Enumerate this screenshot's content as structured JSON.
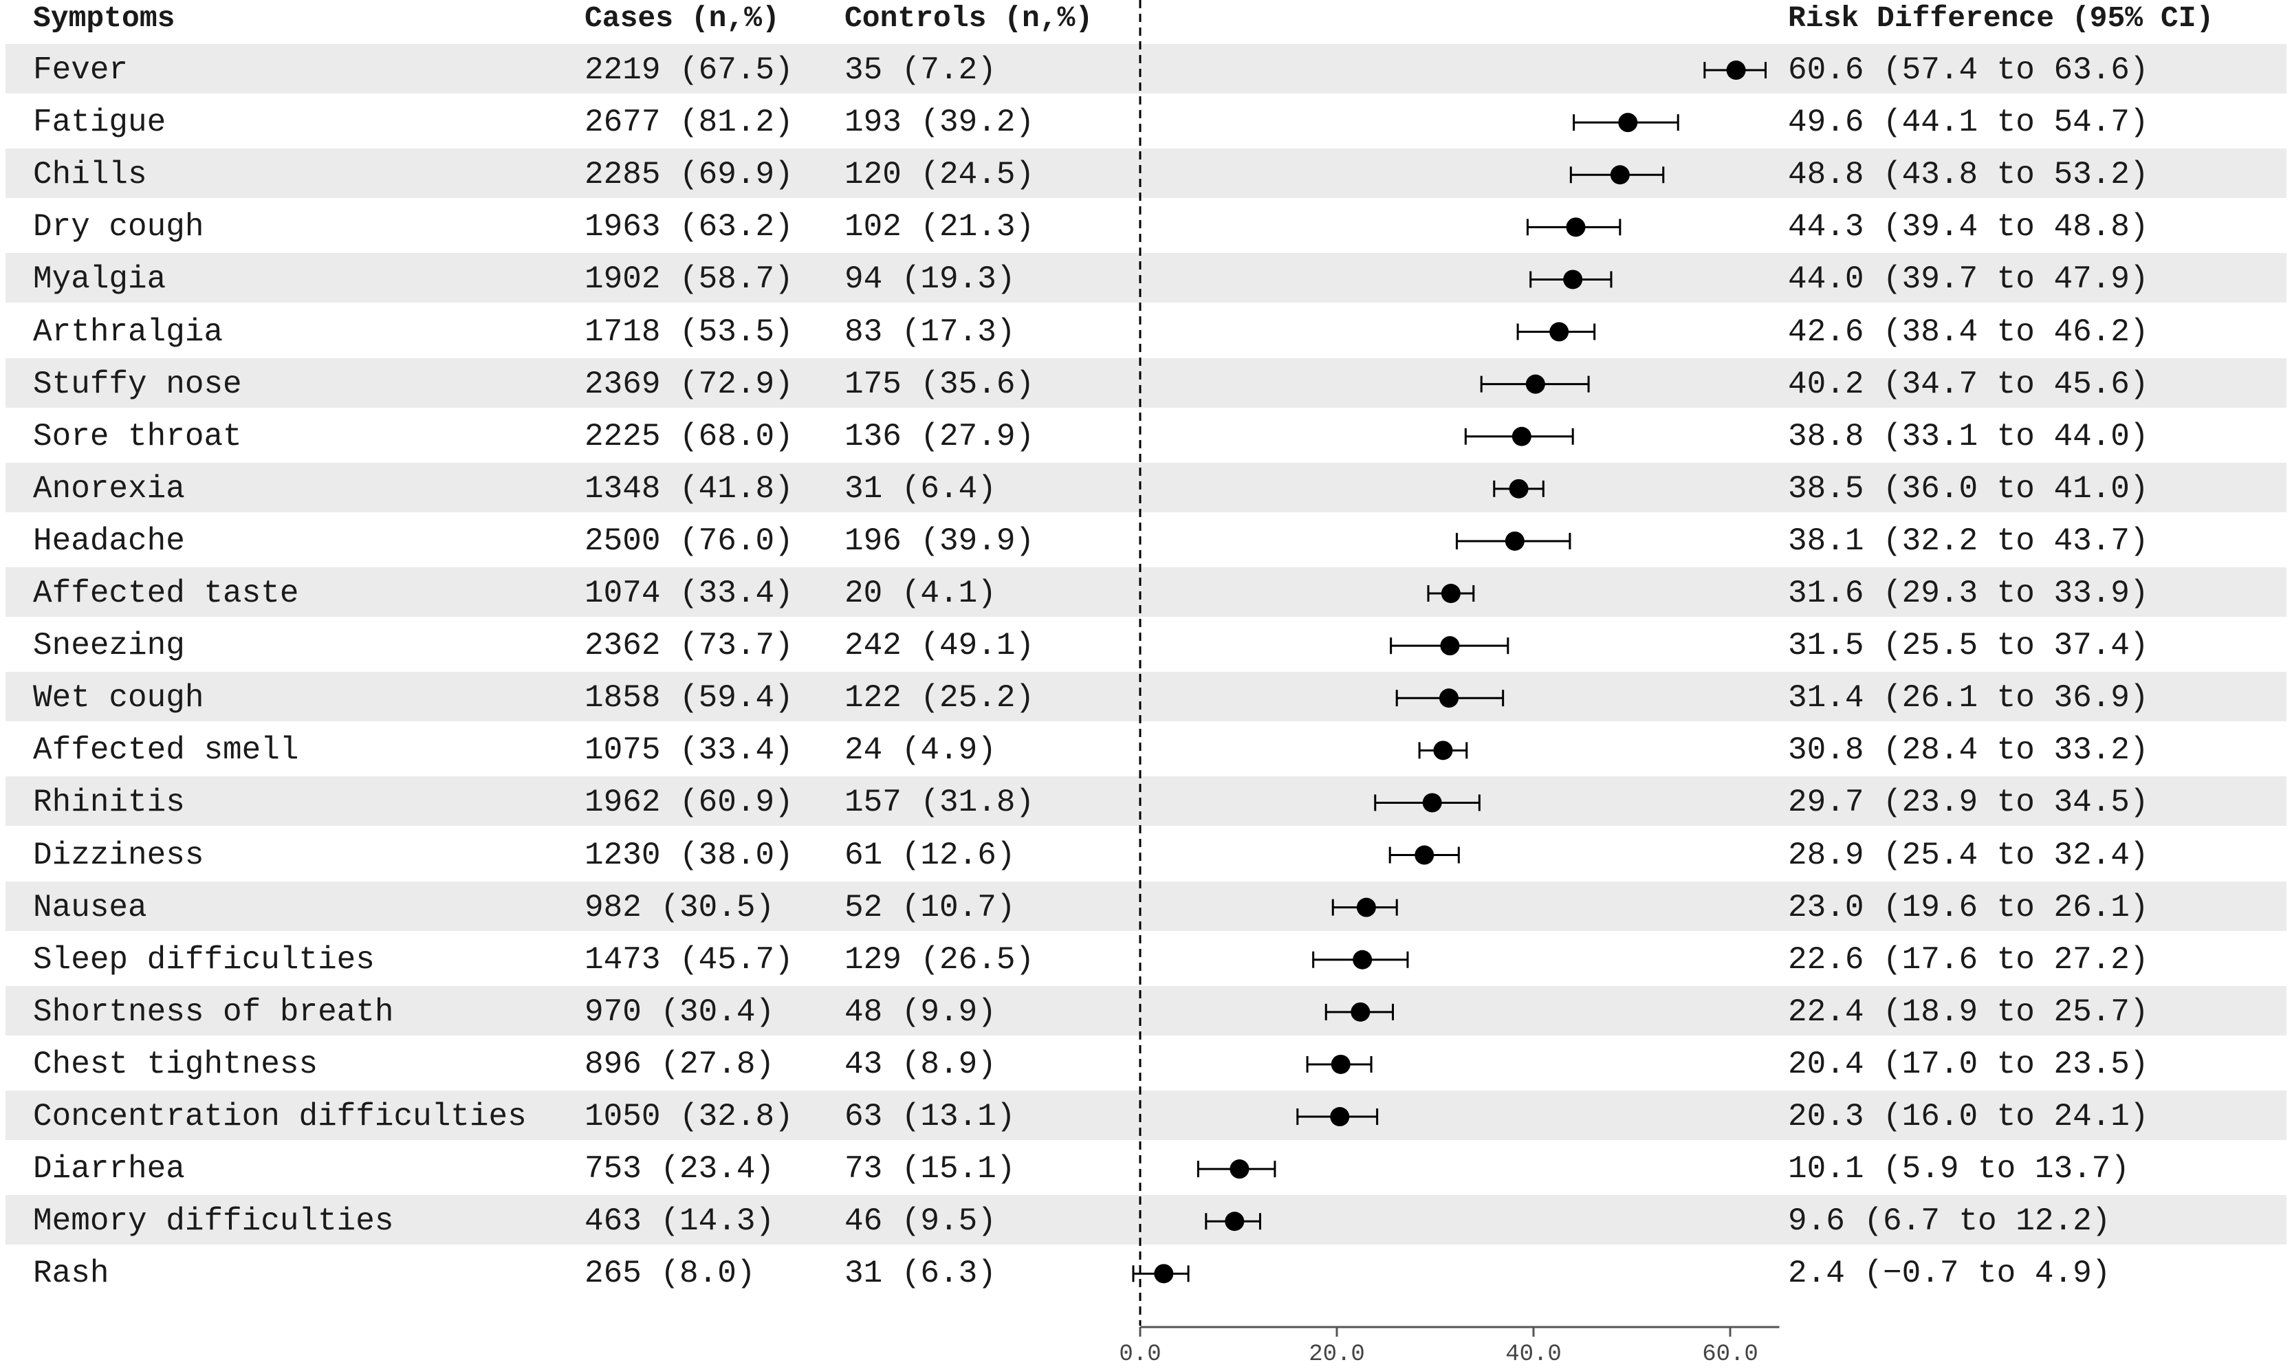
{
  "chart_data": {
    "type": "forest",
    "columns": {
      "symptoms": "Symptoms",
      "cases": "Cases (n,%)",
      "controls": "Controls (n,%)",
      "risk_difference": "Risk Difference (95% CI)"
    },
    "x_axis": {
      "min": 0,
      "max": 65,
      "ticks": [
        0,
        20,
        40,
        60
      ],
      "tick_labels": [
        "0.0",
        "20.0",
        "40.0",
        "60.0"
      ],
      "reference_line": 0
    },
    "rows": [
      {
        "symptom": "Fever",
        "cases": "2219 (67.5)",
        "controls": "35 (7.2)",
        "rd": 60.6,
        "lo": 57.4,
        "hi": 63.6,
        "label": "60.6 (57.4 to 63.6)"
      },
      {
        "symptom": "Fatigue",
        "cases": "2677 (81.2)",
        "controls": "193 (39.2)",
        "rd": 49.6,
        "lo": 44.1,
        "hi": 54.7,
        "label": "49.6 (44.1 to 54.7)"
      },
      {
        "symptom": "Chills",
        "cases": "2285 (69.9)",
        "controls": "120 (24.5)",
        "rd": 48.8,
        "lo": 43.8,
        "hi": 53.2,
        "label": "48.8 (43.8 to 53.2)"
      },
      {
        "symptom": "Dry cough",
        "cases": "1963 (63.2)",
        "controls": "102 (21.3)",
        "rd": 44.3,
        "lo": 39.4,
        "hi": 48.8,
        "label": "44.3 (39.4 to 48.8)"
      },
      {
        "symptom": "Myalgia",
        "cases": "1902 (58.7)",
        "controls": "94 (19.3)",
        "rd": 44.0,
        "lo": 39.7,
        "hi": 47.9,
        "label": "44.0 (39.7 to 47.9)"
      },
      {
        "symptom": "Arthralgia",
        "cases": "1718 (53.5)",
        "controls": "83 (17.3)",
        "rd": 42.6,
        "lo": 38.4,
        "hi": 46.2,
        "label": "42.6 (38.4 to 46.2)"
      },
      {
        "symptom": "Stuffy nose",
        "cases": "2369 (72.9)",
        "controls": "175 (35.6)",
        "rd": 40.2,
        "lo": 34.7,
        "hi": 45.6,
        "label": "40.2 (34.7 to 45.6)"
      },
      {
        "symptom": "Sore throat",
        "cases": "2225 (68.0)",
        "controls": "136 (27.9)",
        "rd": 38.8,
        "lo": 33.1,
        "hi": 44.0,
        "label": "38.8 (33.1 to 44.0)"
      },
      {
        "symptom": "Anorexia",
        "cases": "1348 (41.8)",
        "controls": "31 (6.4)",
        "rd": 38.5,
        "lo": 36.0,
        "hi": 41.0,
        "label": "38.5 (36.0 to 41.0)"
      },
      {
        "symptom": "Headache",
        "cases": "2500 (76.0)",
        "controls": "196 (39.9)",
        "rd": 38.1,
        "lo": 32.2,
        "hi": 43.7,
        "label": "38.1 (32.2 to 43.7)"
      },
      {
        "symptom": "Affected taste",
        "cases": "1074 (33.4)",
        "controls": "20 (4.1)",
        "rd": 31.6,
        "lo": 29.3,
        "hi": 33.9,
        "label": "31.6 (29.3 to 33.9)"
      },
      {
        "symptom": "Sneezing",
        "cases": "2362 (73.7)",
        "controls": "242 (49.1)",
        "rd": 31.5,
        "lo": 25.5,
        "hi": 37.4,
        "label": "31.5 (25.5 to 37.4)"
      },
      {
        "symptom": "Wet cough",
        "cases": "1858 (59.4)",
        "controls": "122 (25.2)",
        "rd": 31.4,
        "lo": 26.1,
        "hi": 36.9,
        "label": "31.4 (26.1 to 36.9)"
      },
      {
        "symptom": "Affected smell",
        "cases": "1075 (33.4)",
        "controls": "24 (4.9)",
        "rd": 30.8,
        "lo": 28.4,
        "hi": 33.2,
        "label": "30.8 (28.4 to 33.2)"
      },
      {
        "symptom": "Rhinitis",
        "cases": "1962 (60.9)",
        "controls": "157 (31.8)",
        "rd": 29.7,
        "lo": 23.9,
        "hi": 34.5,
        "label": "29.7 (23.9 to 34.5)"
      },
      {
        "symptom": "Dizziness",
        "cases": "1230 (38.0)",
        "controls": "61 (12.6)",
        "rd": 28.9,
        "lo": 25.4,
        "hi": 32.4,
        "label": "28.9 (25.4 to 32.4)"
      },
      {
        "symptom": "Nausea",
        "cases": "982 (30.5)",
        "controls": "52 (10.7)",
        "rd": 23.0,
        "lo": 19.6,
        "hi": 26.1,
        "label": "23.0 (19.6 to 26.1)"
      },
      {
        "symptom": "Sleep difficulties",
        "cases": "1473 (45.7)",
        "controls": "129 (26.5)",
        "rd": 22.6,
        "lo": 17.6,
        "hi": 27.2,
        "label": "22.6 (17.6 to 27.2)"
      },
      {
        "symptom": "Shortness of breath",
        "cases": "970 (30.4)",
        "controls": "48 (9.9)",
        "rd": 22.4,
        "lo": 18.9,
        "hi": 25.7,
        "label": "22.4 (18.9 to 25.7)"
      },
      {
        "symptom": "Chest tightness",
        "cases": "896 (27.8)",
        "controls": "43 (8.9)",
        "rd": 20.4,
        "lo": 17.0,
        "hi": 23.5,
        "label": "20.4 (17.0 to 23.5)"
      },
      {
        "symptom": "Concentration difficulties",
        "cases": "1050 (32.8)",
        "controls": "63 (13.1)",
        "rd": 20.3,
        "lo": 16.0,
        "hi": 24.1,
        "label": "20.3 (16.0 to 24.1)"
      },
      {
        "symptom": "Diarrhea",
        "cases": "753 (23.4)",
        "controls": "73 (15.1)",
        "rd": 10.1,
        "lo": 5.9,
        "hi": 13.7,
        "label": "10.1 (5.9 to 13.7)"
      },
      {
        "symptom": "Memory difficulties",
        "cases": "463 (14.3)",
        "controls": "46 (9.5)",
        "rd": 9.6,
        "lo": 6.7,
        "hi": 12.2,
        "label": "9.6 (6.7 to 12.2)"
      },
      {
        "symptom": "Rash",
        "cases": "265 (8.0)",
        "controls": "31 (6.3)",
        "rd": 2.4,
        "lo": -0.7,
        "hi": 4.9,
        "label": "2.4 (−0.7 to 4.9)"
      }
    ],
    "colors": {
      "stripe": "#ebebeb",
      "marker": "#000000",
      "text": "#1a1a1a"
    }
  }
}
